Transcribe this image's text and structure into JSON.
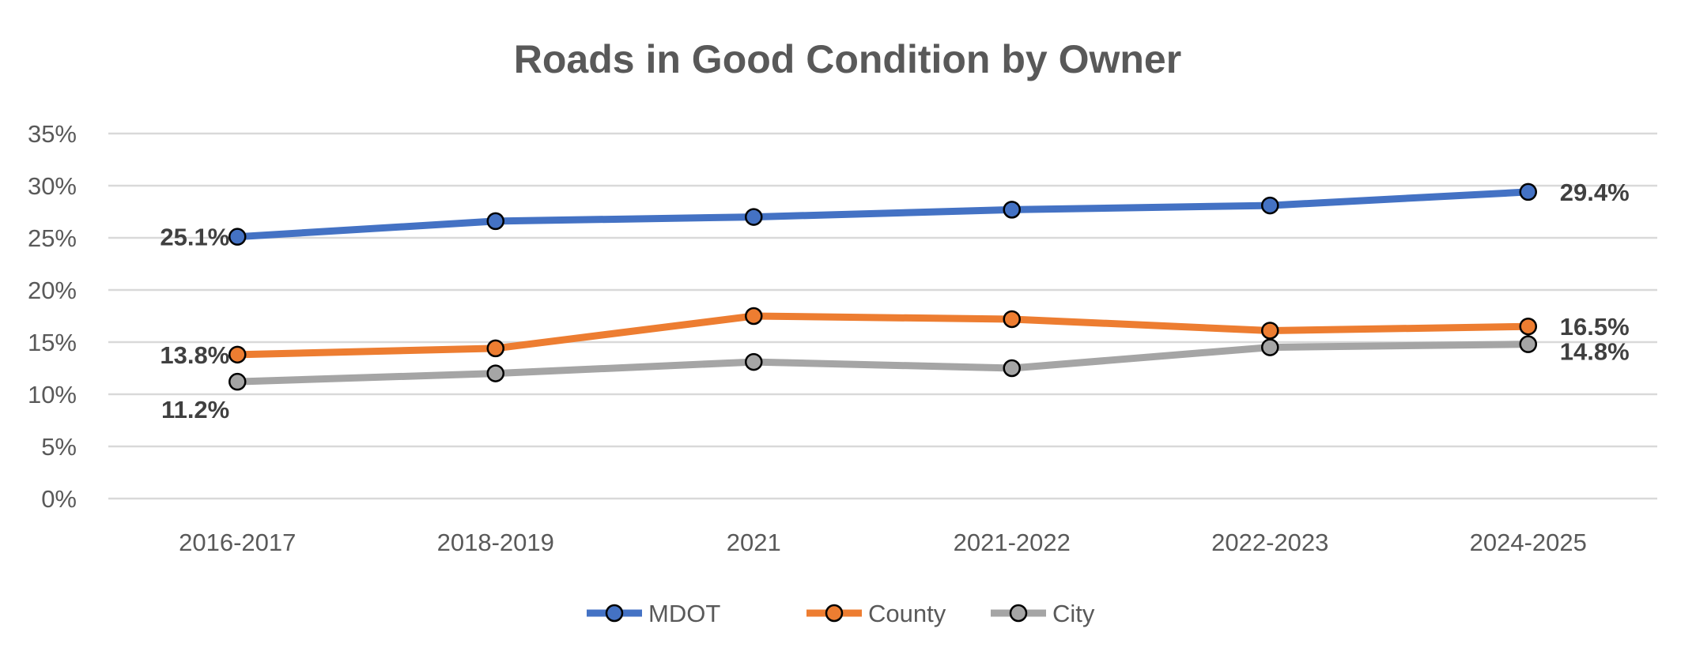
{
  "chart_data": {
    "type": "line",
    "title": "Roads in Good Condition by Owner",
    "xlabel": "",
    "ylabel": "",
    "categories": [
      "2016-2017",
      "2018-2019",
      "2021",
      "2021-2022",
      "2022-2023",
      "2024-2025"
    ],
    "ylim": [
      0,
      35
    ],
    "yticks": [
      0,
      5,
      10,
      15,
      20,
      25,
      30,
      35
    ],
    "ytick_labels": [
      "0%",
      "5%",
      "10%",
      "15%",
      "20%",
      "25%",
      "30%",
      "35%"
    ],
    "grid": true,
    "legend_position": "bottom",
    "series": [
      {
        "name": "MDOT",
        "color": "#4472C4",
        "values": [
          25.1,
          26.6,
          27.0,
          27.7,
          28.1,
          29.4
        ],
        "data_labels": {
          "first": "25.1%",
          "last": "29.4%"
        }
      },
      {
        "name": "County",
        "color": "#ED7D31",
        "values": [
          13.8,
          14.4,
          17.5,
          17.2,
          16.1,
          16.5
        ],
        "data_labels": {
          "first": "13.8%",
          "last": "16.5%"
        }
      },
      {
        "name": "City",
        "color": "#A5A5A5",
        "values": [
          11.2,
          12.0,
          13.1,
          12.5,
          14.5,
          14.8
        ],
        "data_labels": {
          "first": "11.2%",
          "last": "14.8%"
        }
      }
    ]
  }
}
